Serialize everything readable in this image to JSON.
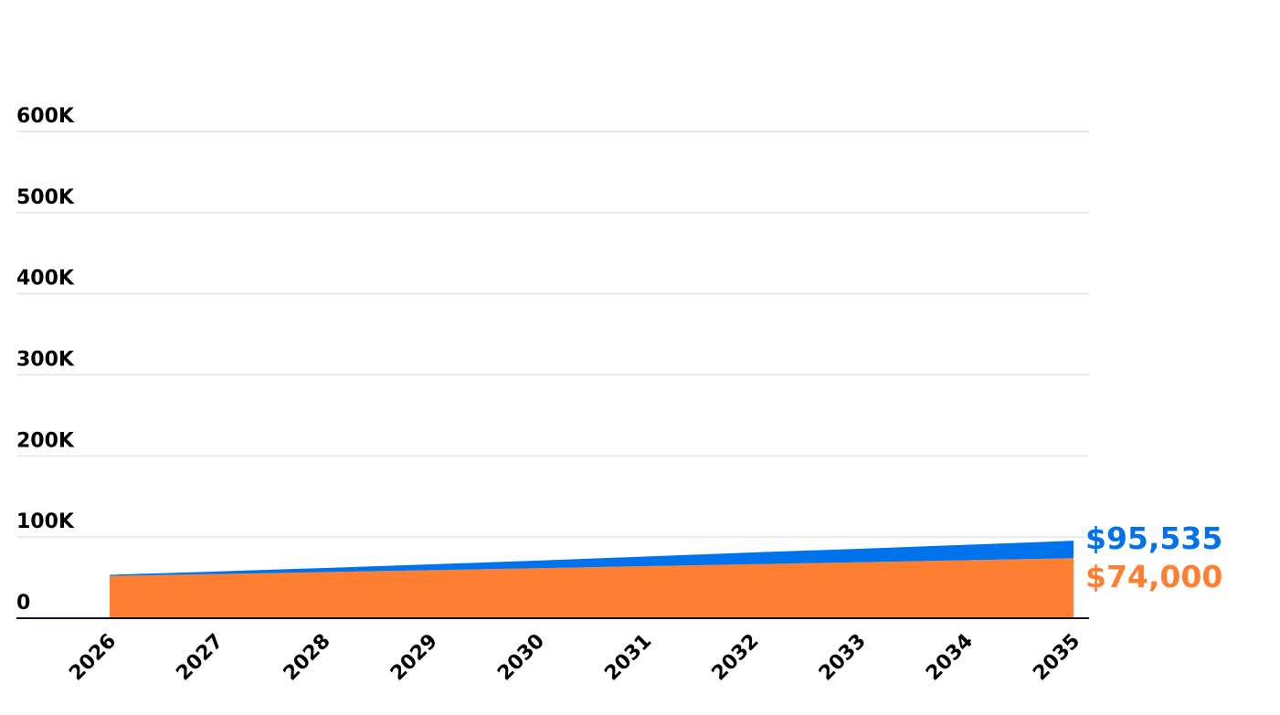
{
  "chart_data": {
    "type": "area",
    "stacked": true,
    "x": [
      "2026",
      "2027",
      "2028",
      "2029",
      "2030",
      "2031",
      "2032",
      "2033",
      "2034",
      "2035"
    ],
    "series": [
      {
        "values": [
          52000,
          54400,
          56800,
          59200,
          61700,
          64100,
          66600,
          69000,
          71500,
          74000
        ],
        "color": "#FF7F32"
      },
      {
        "values": [
          1500,
          3200,
          5100,
          7200,
          9400,
          11900,
          14500,
          16600,
          19000,
          21535
        ],
        "color": "#0073EC"
      }
    ],
    "ylim": [
      0,
      600000
    ],
    "yticks": [
      0,
      100000,
      200000,
      300000,
      400000,
      500000,
      600000
    ],
    "ytick_labels": [
      "0",
      "100K",
      "200K",
      "300K",
      "400K",
      "500K",
      "600K"
    ],
    "end_labels": [
      {
        "text": "$95,535",
        "value": 95535,
        "color": "#0073EC"
      },
      {
        "text": "$74,000",
        "value": 74000,
        "color": "#FF7F32"
      }
    ],
    "title": "",
    "xlabel": "",
    "ylabel": "",
    "grid": true,
    "grid_color": "#e9e9e9",
    "axis_color": "#0b1530",
    "legend": "none"
  }
}
